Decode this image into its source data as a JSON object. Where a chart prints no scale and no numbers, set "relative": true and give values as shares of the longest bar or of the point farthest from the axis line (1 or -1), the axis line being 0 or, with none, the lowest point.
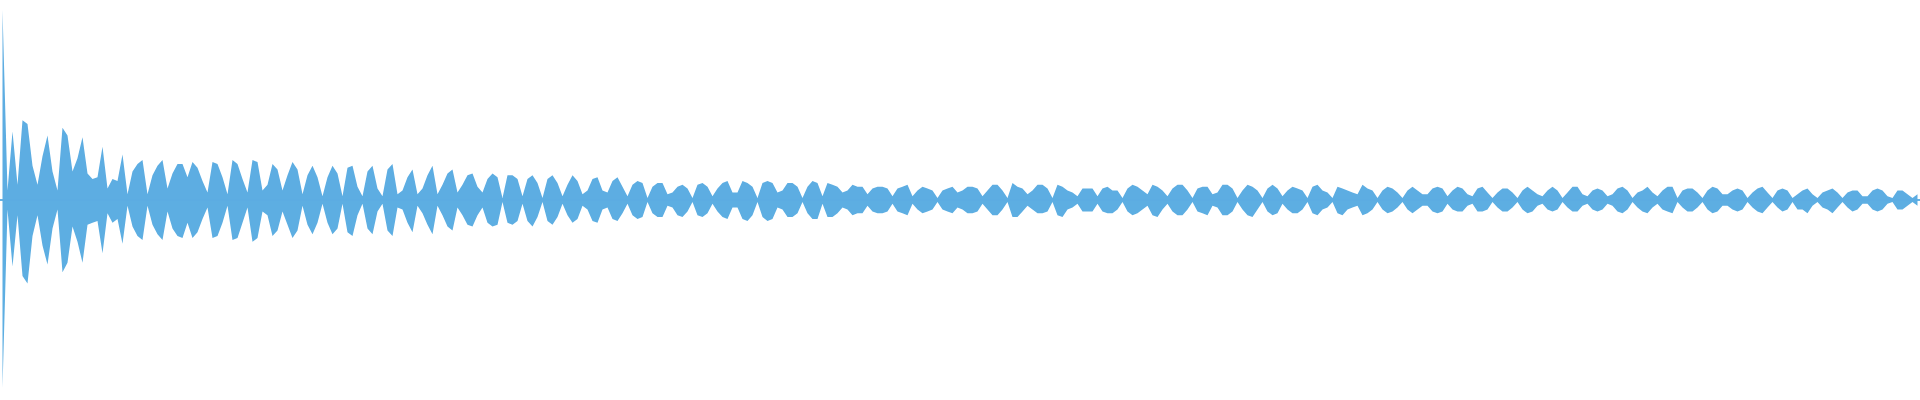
{
  "chart_data": {
    "type": "area",
    "relative": true,
    "ref_lines": [
      {
        "axis": "y",
        "value": 0,
        "color": "#5dade2"
      }
    ],
    "categories": [
      null,
      null,
      null,
      null,
      null,
      null,
      null,
      null,
      null,
      null,
      null,
      null,
      null,
      null,
      null,
      null,
      null,
      null,
      null,
      null,
      null,
      null,
      null,
      null,
      null,
      null,
      null,
      null,
      null,
      null,
      null,
      null,
      null,
      null,
      null,
      null,
      null,
      null,
      null,
      null,
      null,
      null,
      null,
      null,
      null,
      null,
      null,
      null,
      null,
      null,
      null,
      null,
      null,
      null,
      null,
      null,
      null,
      null,
      null,
      null,
      null,
      null,
      null,
      null,
      null,
      null,
      null,
      null,
      null,
      null,
      null,
      null,
      null,
      null,
      null,
      null,
      null,
      null,
      null,
      null,
      null,
      null,
      null,
      null,
      null,
      null,
      null,
      null,
      null,
      null,
      null,
      null,
      null,
      null,
      null,
      null,
      null,
      null,
      null,
      null,
      null,
      null,
      null,
      null,
      null,
      null,
      null,
      null,
      null,
      null,
      null,
      null,
      null,
      null,
      null,
      null,
      null,
      null,
      null,
      null,
      null,
      null,
      null,
      null,
      null,
      null,
      null,
      null,
      null,
      null,
      null,
      null,
      null,
      null,
      null,
      null,
      null,
      null,
      null,
      null,
      null,
      null,
      null,
      null,
      null,
      null,
      null,
      null,
      null,
      null,
      null,
      null,
      null,
      null,
      null,
      null,
      null,
      null,
      null,
      null,
      null,
      null,
      null,
      null,
      null,
      null,
      null,
      null,
      null,
      null,
      null,
      null,
      null,
      null,
      null,
      null,
      null,
      null,
      null,
      null,
      null,
      null,
      null,
      null,
      null,
      null,
      null,
      null,
      null,
      null,
      null,
      null,
      null,
      null,
      null,
      null,
      null,
      null,
      null,
      null,
      null,
      null,
      null,
      null,
      null,
      null,
      null,
      null,
      null,
      null,
      null,
      null,
      null,
      null,
      null,
      null,
      null,
      null,
      null,
      null,
      null,
      null,
      null,
      null,
      null,
      null,
      null,
      null,
      null,
      null,
      null,
      null,
      null,
      null,
      null,
      null,
      null,
      null,
      null,
      null,
      null,
      null,
      null,
      null,
      null,
      null,
      null,
      null,
      null,
      null,
      null,
      null,
      null,
      null,
      null,
      null,
      null,
      null,
      null,
      null,
      null,
      null,
      null,
      null,
      null,
      null,
      null,
      null,
      null,
      null,
      null,
      null,
      null,
      null,
      null,
      null,
      null,
      null,
      null,
      null,
      null,
      null,
      null,
      null,
      null,
      null,
      null,
      null,
      null,
      null,
      null,
      null,
      null,
      null,
      null,
      null,
      null,
      null,
      null,
      null,
      null,
      null,
      null,
      null,
      null,
      null,
      null,
      null,
      null,
      null,
      null,
      null,
      null,
      null,
      null,
      null,
      null,
      null,
      null,
      null,
      null,
      null,
      null,
      null,
      null,
      null,
      null,
      null,
      null,
      null,
      null,
      null,
      null,
      null,
      null,
      null,
      null,
      null,
      null,
      null,
      null,
      null,
      null,
      null,
      null,
      null,
      null,
      null,
      null,
      null,
      null,
      null,
      null,
      null,
      null,
      null,
      null,
      null,
      null,
      null,
      null,
      null,
      null,
      null,
      null,
      null,
      null,
      null,
      null,
      null,
      null,
      null,
      null,
      null,
      null,
      null,
      null,
      null,
      null,
      null,
      null,
      null,
      null,
      null
    ],
    "series": [
      {
        "color": "#5dade2",
        "values": [
          1,
          0.05,
          0.36,
          0.08,
          0.42,
          0.4,
          0.18,
          0.08,
          0.23,
          0.34,
          0.15,
          0.05,
          0.38,
          0.34,
          0.15,
          0.22,
          0.33,
          0.14,
          0.11,
          0.12,
          0.28,
          0.06,
          0.11,
          0.1,
          0.24,
          0.03,
          0.15,
          0.19,
          0.21,
          0.03,
          0.13,
          0.18,
          0.21,
          0.06,
          0.14,
          0.19,
          0.19,
          0.12,
          0.2,
          0.17,
          0.1,
          0.04,
          0.2,
          0.19,
          0.12,
          0.03,
          0.21,
          0.19,
          0.11,
          0.04,
          0.21,
          0.2,
          0.05,
          0.08,
          0.19,
          0.16,
          0.05,
          0.13,
          0.2,
          0.16,
          0.03,
          0.13,
          0.18,
          0.12,
          0.02,
          0.12,
          0.18,
          0.14,
          0.02,
          0.17,
          0.18,
          0.07,
          0.02,
          0.15,
          0.18,
          0.06,
          0.02,
          0.16,
          0.19,
          0.03,
          0.05,
          0.12,
          0.16,
          0.03,
          0.06,
          0.13,
          0.18,
          0.03,
          0.08,
          0.14,
          0.16,
          0.04,
          0.08,
          0.13,
          0.14,
          0.07,
          0.04,
          0.11,
          0.14,
          0.12,
          0.01,
          0.13,
          0.13,
          0.11,
          0.02,
          0.11,
          0.13,
          0.09,
          0.01,
          0.11,
          0.13,
          0.09,
          0.02,
          0.08,
          0.13,
          0.1,
          0.03,
          0.05,
          0.11,
          0.12,
          0.05,
          0.04,
          0.1,
          0.12,
          0.07,
          0.02,
          0.08,
          0.1,
          0.09,
          0.01,
          0.07,
          0.09,
          0.09,
          0.03,
          0.04,
          0.07,
          0.08,
          0.06,
          0.01,
          0.08,
          0.09,
          0.07,
          0.02,
          0.06,
          0.09,
          0.1,
          0.04,
          0.04,
          0.1,
          0.09,
          0.07,
          0.01,
          0.09,
          0.1,
          0.09,
          0.04,
          0.05,
          0.09,
          0.09,
          0.07,
          0.01,
          0.07,
          0.1,
          0.09,
          0.02,
          0.09,
          0.08,
          0.07,
          0.04,
          0.05,
          0.08,
          0.07,
          0.07,
          0.03,
          0.06,
          0.07,
          0.07,
          0.06,
          0.02,
          0.06,
          0.07,
          0.08,
          0.02,
          0.05,
          0.07,
          0.06,
          0.05,
          0.01,
          0.05,
          0.06,
          0.07,
          0.04,
          0.05,
          0.07,
          0.07,
          0.06,
          0.02,
          0.05,
          0.08,
          0.08,
          0.05,
          0.01,
          0.09,
          0.07,
          0.06,
          0.03,
          0.05,
          0.08,
          0.08,
          0.06,
          0.01,
          0.08,
          0.07,
          0.05,
          0.04,
          0.02,
          0.06,
          0.06,
          0.06,
          0.02,
          0.06,
          0.07,
          0.05,
          0.05,
          0.01,
          0.06,
          0.08,
          0.07,
          0.05,
          0.03,
          0.08,
          0.07,
          0.05,
          0.02,
          0.06,
          0.08,
          0.08,
          0.05,
          0.01,
          0.06,
          0.07,
          0.07,
          0.03,
          0.04,
          0.08,
          0.08,
          0.06,
          0.01,
          0.05,
          0.08,
          0.07,
          0.05,
          0.01,
          0.06,
          0.08,
          0.06,
          0.02,
          0.05,
          0.07,
          0.06,
          0.05,
          0.01,
          0.07,
          0.08,
          0.05,
          0.04,
          0.01,
          0.07,
          0.06,
          0.05,
          0.04,
          0.03,
          0.08,
          0.06,
          0.05,
          0.01,
          0.05,
          0.07,
          0.06,
          0.04,
          0.01,
          0.05,
          0.07,
          0.05,
          0.03,
          0.03,
          0.06,
          0.07,
          0.06,
          0.02,
          0.05,
          0.07,
          0.06,
          0.03,
          0.02,
          0.06,
          0.07,
          0.04,
          0.01,
          0.04,
          0.06,
          0.06,
          0.04,
          0.01,
          0.05,
          0.07,
          0.05,
          0.03,
          0.02,
          0.05,
          0.07,
          0.05,
          0.01,
          0.04,
          0.07,
          0.07,
          0.03,
          0.02,
          0.05,
          0.06,
          0.05,
          0.02,
          0.03,
          0.06,
          0.07,
          0.05,
          0.01,
          0.04,
          0.05,
          0.07,
          0.04,
          0.02,
          0.05,
          0.07,
          0.07,
          0.01,
          0.05,
          0.06,
          0.06,
          0.04,
          0.01,
          0.05,
          0.07,
          0.06,
          0.03,
          0.03,
          0.05,
          0.06,
          0.05,
          0.01,
          0.04,
          0.06,
          0.07,
          0.04,
          0.01,
          0.05,
          0.06,
          0.05,
          0.01,
          0.03,
          0.05,
          0.06,
          0.03,
          0.01,
          0.04,
          0.05,
          0.06,
          0.04,
          0.01,
          0.04,
          0.05,
          0.05,
          0.02,
          0.02,
          0.05,
          0.06,
          0.05,
          0.02,
          0.01,
          0.05,
          0.05,
          0.03,
          0.01,
          0.03
        ]
      },
      {
        "color": "#5daee2",
        "values": [
          -0.99,
          -0.05,
          -0.35,
          -0.08,
          -0.4,
          -0.44,
          -0.19,
          -0.08,
          -0.24,
          -0.34,
          -0.15,
          -0.05,
          -0.38,
          -0.33,
          -0.14,
          -0.22,
          -0.33,
          -0.13,
          -0.12,
          -0.11,
          -0.28,
          -0.07,
          -0.12,
          -0.1,
          -0.23,
          -0.03,
          -0.14,
          -0.19,
          -0.21,
          -0.03,
          -0.13,
          -0.18,
          -0.21,
          -0.06,
          -0.15,
          -0.19,
          -0.2,
          -0.12,
          -0.2,
          -0.17,
          -0.1,
          -0.04,
          -0.2,
          -0.19,
          -0.12,
          -0.03,
          -0.21,
          -0.2,
          -0.12,
          -0.04,
          -0.22,
          -0.2,
          -0.06,
          -0.08,
          -0.19,
          -0.16,
          -0.06,
          -0.13,
          -0.2,
          -0.16,
          -0.03,
          -0.13,
          -0.18,
          -0.12,
          -0.02,
          -0.12,
          -0.18,
          -0.15,
          -0.02,
          -0.17,
          -0.19,
          -0.08,
          -0.02,
          -0.15,
          -0.18,
          -0.06,
          -0.02,
          -0.16,
          -0.19,
          -0.04,
          -0.05,
          -0.12,
          -0.17,
          -0.03,
          -0.07,
          -0.13,
          -0.18,
          -0.03,
          -0.08,
          -0.14,
          -0.16,
          -0.04,
          -0.08,
          -0.13,
          -0.14,
          -0.08,
          -0.04,
          -0.12,
          -0.14,
          -0.13,
          -0.01,
          -0.12,
          -0.13,
          -0.11,
          -0.02,
          -0.11,
          -0.14,
          -0.09,
          -0.01,
          -0.11,
          -0.13,
          -0.09,
          -0.02,
          -0.08,
          -0.12,
          -0.1,
          -0.03,
          -0.05,
          -0.11,
          -0.12,
          -0.05,
          -0.04,
          -0.1,
          -0.11,
          -0.07,
          -0.02,
          -0.08,
          -0.1,
          -0.09,
          -0.01,
          -0.07,
          -0.09,
          -0.09,
          -0.03,
          -0.04,
          -0.08,
          -0.09,
          -0.06,
          -0.01,
          -0.08,
          -0.09,
          -0.07,
          -0.02,
          -0.06,
          -0.09,
          -0.1,
          -0.04,
          -0.04,
          -0.1,
          -0.11,
          -0.08,
          -0.01,
          -0.09,
          -0.11,
          -0.1,
          -0.04,
          -0.05,
          -0.09,
          -0.09,
          -0.07,
          -0.01,
          -0.07,
          -0.1,
          -0.1,
          -0.02,
          -0.09,
          -0.09,
          -0.07,
          -0.04,
          -0.05,
          -0.08,
          -0.07,
          -0.07,
          -0.03,
          -0.06,
          -0.07,
          -0.07,
          -0.06,
          -0.02,
          -0.06,
          -0.07,
          -0.08,
          -0.02,
          -0.05,
          -0.07,
          -0.06,
          -0.05,
          -0.01,
          -0.05,
          -0.06,
          -0.07,
          -0.04,
          -0.05,
          -0.07,
          -0.07,
          -0.06,
          -0.02,
          -0.05,
          -0.08,
          -0.08,
          -0.05,
          -0.01,
          -0.09,
          -0.09,
          -0.06,
          -0.03,
          -0.05,
          -0.07,
          -0.07,
          -0.06,
          -0.01,
          -0.08,
          -0.09,
          -0.05,
          -0.04,
          -0.02,
          -0.06,
          -0.06,
          -0.06,
          -0.02,
          -0.06,
          -0.07,
          -0.07,
          -0.05,
          -0.01,
          -0.06,
          -0.08,
          -0.07,
          -0.05,
          -0.03,
          -0.08,
          -0.09,
          -0.05,
          -0.02,
          -0.06,
          -0.08,
          -0.08,
          -0.05,
          -0.01,
          -0.06,
          -0.07,
          -0.08,
          -0.03,
          -0.04,
          -0.08,
          -0.08,
          -0.06,
          -0.01,
          -0.05,
          -0.08,
          -0.09,
          -0.05,
          -0.01,
          -0.06,
          -0.08,
          -0.07,
          -0.02,
          -0.05,
          -0.07,
          -0.07,
          -0.05,
          -0.01,
          -0.07,
          -0.08,
          -0.05,
          -0.04,
          -0.01,
          -0.07,
          -0.08,
          -0.05,
          -0.04,
          -0.03,
          -0.08,
          -0.07,
          -0.05,
          -0.01,
          -0.05,
          -0.07,
          -0.06,
          -0.04,
          -0.01,
          -0.05,
          -0.07,
          -0.05,
          -0.03,
          -0.03,
          -0.06,
          -0.07,
          -0.06,
          -0.02,
          -0.05,
          -0.06,
          -0.06,
          -0.03,
          -0.02,
          -0.06,
          -0.06,
          -0.05,
          -0.01,
          -0.04,
          -0.06,
          -0.06,
          -0.04,
          -0.01,
          -0.05,
          -0.07,
          -0.06,
          -0.03,
          -0.02,
          -0.05,
          -0.06,
          -0.05,
          -0.01,
          -0.04,
          -0.06,
          -0.06,
          -0.03,
          -0.02,
          -0.05,
          -0.06,
          -0.05,
          -0.02,
          -0.03,
          -0.06,
          -0.07,
          -0.05,
          -0.01,
          -0.04,
          -0.06,
          -0.07,
          -0.04,
          -0.02,
          -0.05,
          -0.06,
          -0.07,
          -0.01,
          -0.04,
          -0.06,
          -0.06,
          -0.04,
          -0.01,
          -0.05,
          -0.07,
          -0.06,
          -0.03,
          -0.03,
          -0.05,
          -0.06,
          -0.05,
          -0.01,
          -0.04,
          -0.06,
          -0.07,
          -0.04,
          -0.01,
          -0.04,
          -0.06,
          -0.05,
          -0.01,
          -0.05,
          -0.05,
          -0.07,
          -0.03,
          -0.01,
          -0.04,
          -0.05,
          -0.07,
          -0.04,
          -0.01,
          -0.04,
          -0.06,
          -0.05,
          -0.02,
          -0.02,
          -0.05,
          -0.06,
          -0.05,
          -0.02,
          -0.01,
          -0.05,
          -0.05,
          -0.03,
          -0.01,
          -0.03
        ]
      }
    ]
  }
}
